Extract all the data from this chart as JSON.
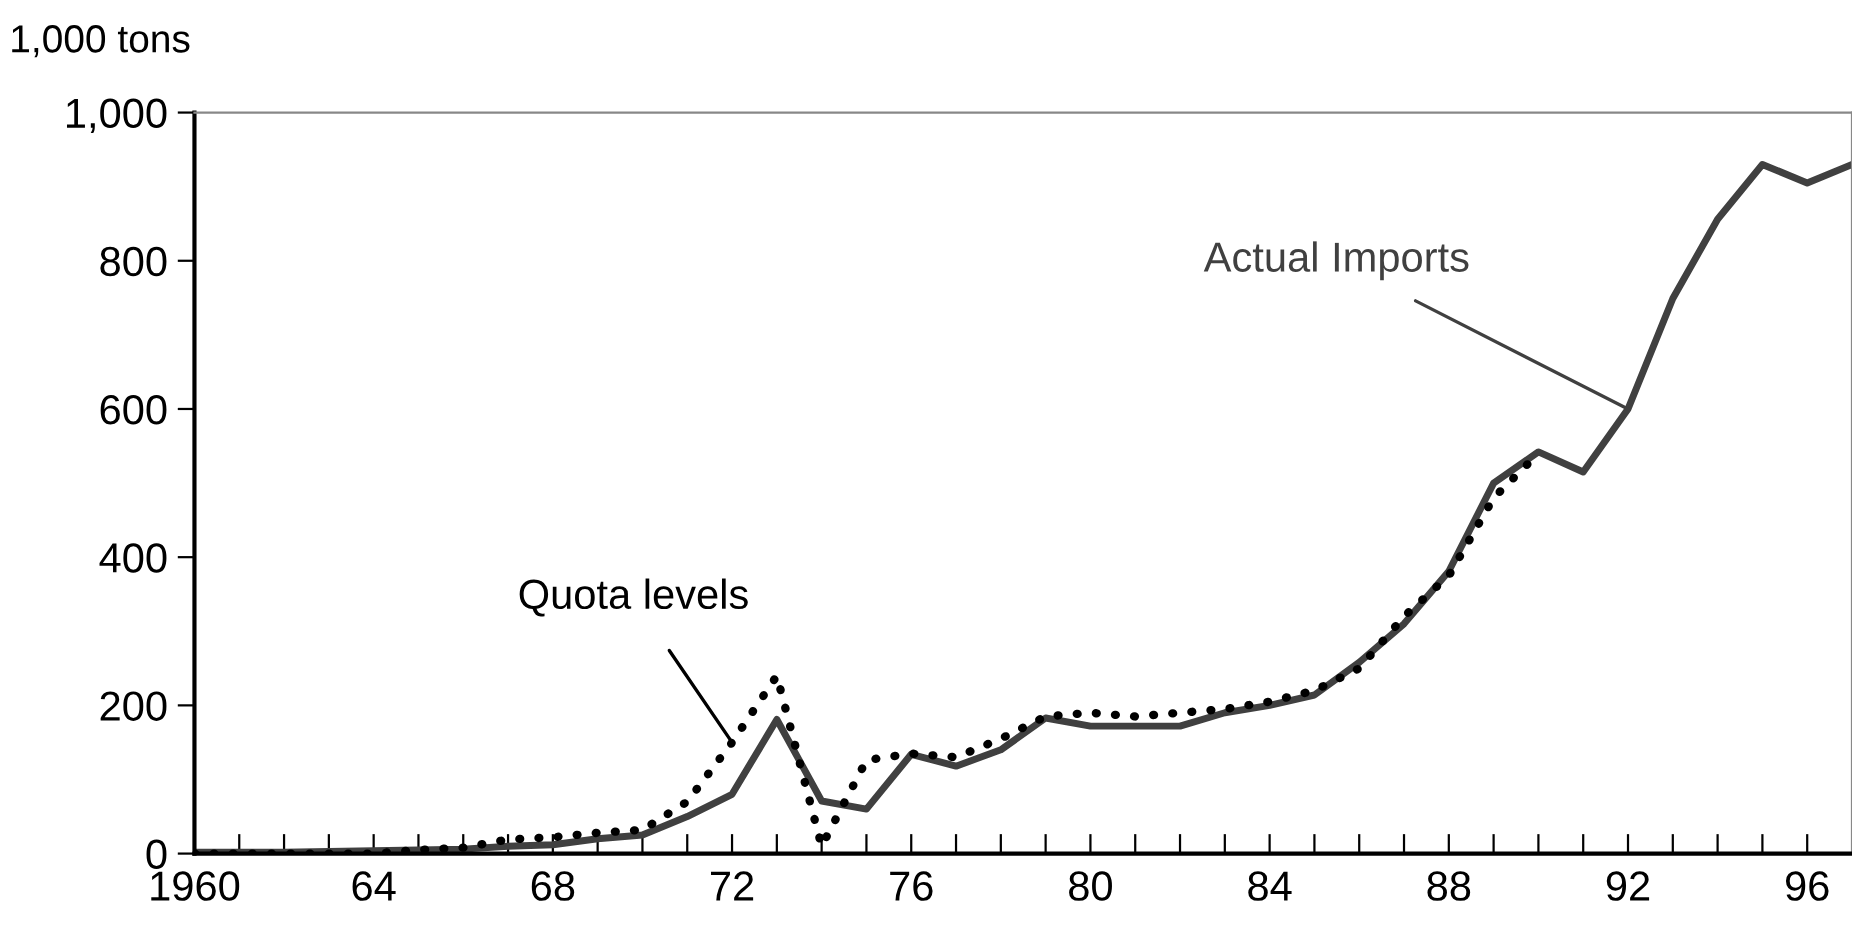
{
  "chart_data": {
    "type": "line",
    "ylabel": "1,000 tons",
    "xlim": [
      1960,
      1997
    ],
    "ylim": [
      0,
      1000
    ],
    "xticks": [
      {
        "value": 1960,
        "label": "1960"
      },
      {
        "value": 1961,
        "label": null
      },
      {
        "value": 1962,
        "label": null
      },
      {
        "value": 1963,
        "label": null
      },
      {
        "value": 1964,
        "label": "64"
      },
      {
        "value": 1965,
        "label": null
      },
      {
        "value": 1966,
        "label": null
      },
      {
        "value": 1967,
        "label": null
      },
      {
        "value": 1968,
        "label": "68"
      },
      {
        "value": 1969,
        "label": null
      },
      {
        "value": 1970,
        "label": null
      },
      {
        "value": 1971,
        "label": null
      },
      {
        "value": 1972,
        "label": "72"
      },
      {
        "value": 1973,
        "label": null
      },
      {
        "value": 1974,
        "label": null
      },
      {
        "value": 1975,
        "label": null
      },
      {
        "value": 1976,
        "label": "76"
      },
      {
        "value": 1977,
        "label": null
      },
      {
        "value": 1978,
        "label": null
      },
      {
        "value": 1979,
        "label": null
      },
      {
        "value": 1980,
        "label": "80"
      },
      {
        "value": 1981,
        "label": null
      },
      {
        "value": 1982,
        "label": null
      },
      {
        "value": 1983,
        "label": null
      },
      {
        "value": 1984,
        "label": "84"
      },
      {
        "value": 1985,
        "label": null
      },
      {
        "value": 1986,
        "label": null
      },
      {
        "value": 1987,
        "label": null
      },
      {
        "value": 1988,
        "label": "88"
      },
      {
        "value": 1989,
        "label": null
      },
      {
        "value": 1990,
        "label": null
      },
      {
        "value": 1991,
        "label": null
      },
      {
        "value": 1992,
        "label": "92"
      },
      {
        "value": 1993,
        "label": null
      },
      {
        "value": 1994,
        "label": null
      },
      {
        "value": 1995,
        "label": null
      },
      {
        "value": 1996,
        "label": "96"
      }
    ],
    "yticks": [
      0,
      200,
      400,
      600,
      800,
      {
        "value": 1000,
        "label": "1,000"
      }
    ],
    "grid": false,
    "legend": false,
    "series": [
      {
        "name": "Actual Imports",
        "color": "#404040",
        "line_style": "solid",
        "x": [
          1960,
          1961,
          1962,
          1963,
          1964,
          1965,
          1966,
          1967,
          1968,
          1969,
          1970,
          1971,
          1972,
          1973,
          1974,
          1975,
          1976,
          1977,
          1978,
          1979,
          1980,
          1981,
          1982,
          1983,
          1984,
          1985,
          1986,
          1987,
          1988,
          1989,
          1990,
          1991,
          1992,
          1993,
          1994,
          1995,
          1996,
          1997
        ],
        "values": [
          2,
          2,
          2,
          3,
          4,
          5,
          6,
          10,
          12,
          20,
          25,
          50,
          80,
          181,
          71,
          60,
          134,
          118,
          140,
          183,
          172,
          172,
          172,
          190,
          200,
          214,
          258,
          310,
          381,
          500,
          542,
          515,
          600,
          749,
          856,
          930,
          905,
          930
        ]
      },
      {
        "name": "Quota levels",
        "color": "#000000",
        "line_style": "dotted",
        "x": [
          1960,
          1961,
          1962,
          1963,
          1964,
          1965,
          1966,
          1967,
          1968,
          1969,
          1970,
          1971,
          1972,
          1973,
          1974,
          1975,
          1976,
          1977,
          1978,
          1979,
          1980,
          1981,
          1982,
          1983,
          1984,
          1985,
          1986,
          1987,
          1988,
          1989,
          1990
        ],
        "values": [
          0,
          0,
          0,
          0,
          0,
          5,
          8,
          19,
          22,
          28,
          32,
          70,
          150,
          240,
          10,
          126,
          135,
          130,
          155,
          185,
          190,
          185,
          190,
          195,
          205,
          220,
          250,
          320,
          375,
          480,
          540
        ]
      }
    ]
  }
}
